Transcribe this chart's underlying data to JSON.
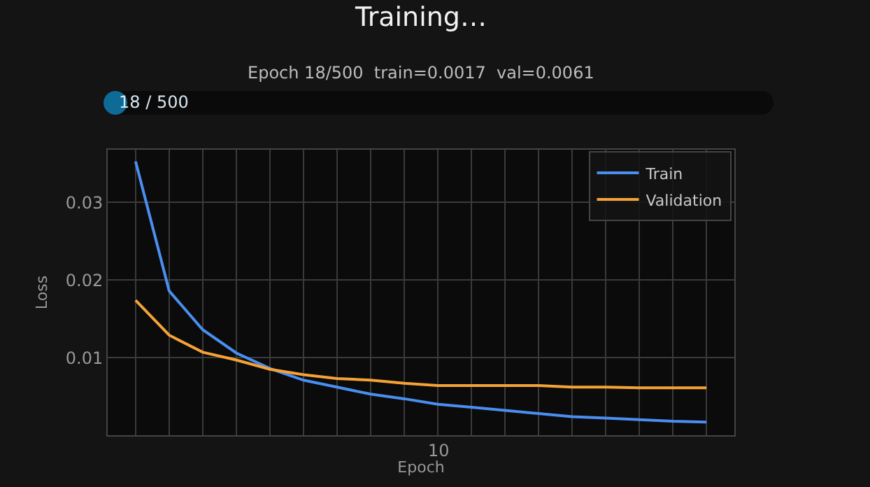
{
  "chart_data": {
    "type": "line",
    "title": "Training…",
    "subtitle": "Epoch 18/500  train=0.0017  val=0.0061",
    "annotations": [
      "18 / 500",
      "10"
    ],
    "xlabel": "Epoch",
    "ylabel": "Loss",
    "categories": [
      null,
      null,
      null,
      null,
      null,
      null,
      null,
      null,
      null,
      null,
      null,
      null,
      null,
      null,
      null,
      null,
      null,
      null
    ],
    "series": [
      {
        "name": "Train",
        "color": "#4a8ef0",
        "values": [
          0.0353,
          0.0186,
          0.0136,
          0.0106,
          0.0086,
          0.0071,
          0.0062,
          0.0053,
          0.0047,
          0.004,
          0.0036,
          0.0032,
          0.0028,
          0.0024,
          0.0022,
          0.002,
          0.0018,
          0.0017
        ]
      },
      {
        "name": "Validation",
        "color": "#f5a236",
        "values": [
          0.0174,
          0.0129,
          0.0107,
          0.0097,
          0.0085,
          0.0078,
          0.0073,
          0.0071,
          0.0067,
          0.0064,
          0.0064,
          0.0064,
          0.0064,
          0.0062,
          0.0062,
          0.0061,
          0.0061,
          0.0061
        ]
      }
    ],
    "ylim": [
      0,
      0.0368
    ],
    "yticks": [
      0.01,
      0.02,
      0.03
    ],
    "grid": true,
    "legend": "top right",
    "line_style": "solid",
    "marker": "none"
  }
}
